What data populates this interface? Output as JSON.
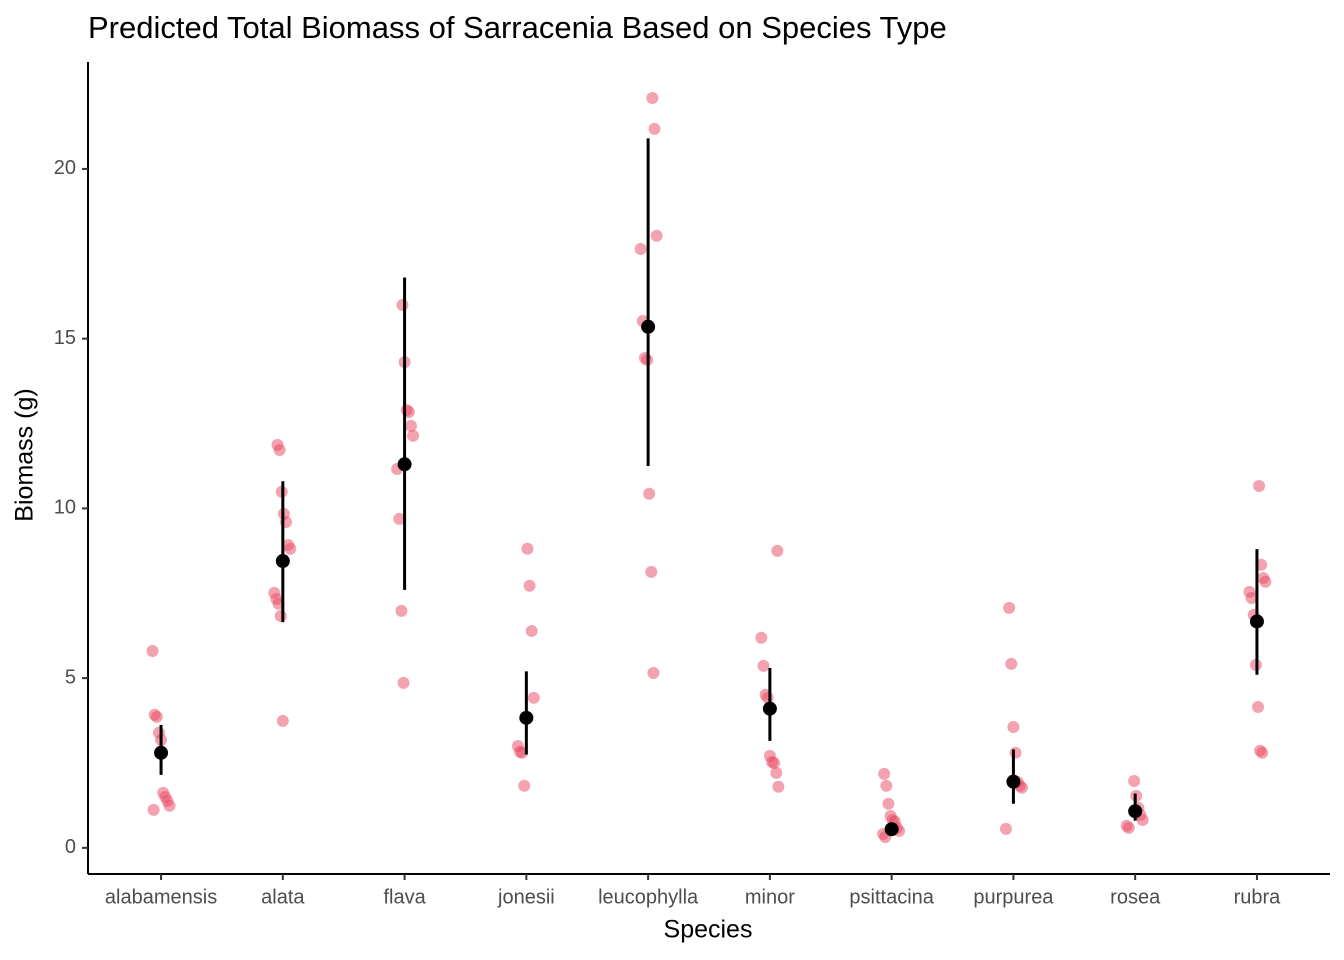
{
  "chart_data": {
    "type": "jitter-errorbar",
    "title": "Predicted Total Biomass of Sarracenia Based on Species Type",
    "x_label": "Species",
    "y_label": "Biomass (g)",
    "categories": [
      "alabamensis",
      "alata",
      "flava",
      "jonesii",
      "leucophylla",
      "minor",
      "psittacina",
      "purpurea",
      "rosea",
      "rubra"
    ],
    "points": [
      [
        5.8,
        3.92,
        3.86,
        3.39,
        3.18,
        1.62,
        1.5,
        1.38,
        1.24,
        1.12
      ],
      [
        11.87,
        11.72,
        10.49,
        9.84,
        9.6,
        8.92,
        8.81,
        7.51,
        7.33,
        7.19,
        6.83,
        3.74
      ],
      [
        15.99,
        14.31,
        12.9,
        12.84,
        12.43,
        12.14,
        11.16,
        9.69,
        6.98,
        4.86
      ],
      [
        8.81,
        7.72,
        6.39,
        4.42,
        3.0,
        2.83,
        2.8,
        1.83
      ],
      [
        22.09,
        21.18,
        18.03,
        17.64,
        15.52,
        14.43,
        14.37,
        10.43,
        8.13,
        5.15
      ],
      [
        8.75,
        6.19,
        5.36,
        4.51,
        4.42,
        2.71,
        2.53,
        2.5,
        2.21,
        1.8
      ],
      [
        2.18,
        1.83,
        1.3,
        0.94,
        0.82,
        0.77,
        0.59,
        0.5,
        0.41,
        0.32
      ],
      [
        7.07,
        5.42,
        3.56,
        2.8,
        1.94,
        1.83,
        1.77,
        0.56
      ],
      [
        1.97,
        1.53,
        1.18,
        0.97,
        0.82,
        0.65,
        0.59
      ],
      [
        10.66,
        8.34,
        7.95,
        7.84,
        7.54,
        7.36,
        6.86,
        5.39,
        4.15,
        2.86,
        2.8
      ]
    ],
    "point_color": "#e8475f",
    "means": [
      2.8,
      8.45,
      11.3,
      3.83,
      15.35,
      4.1,
      0.55,
      1.95,
      1.08,
      6.67
    ],
    "lower": [
      2.15,
      6.65,
      7.6,
      2.75,
      11.25,
      3.15,
      0.4,
      1.3,
      0.8,
      5.1
    ],
    "upper": [
      3.62,
      10.8,
      16.8,
      5.2,
      20.9,
      5.3,
      0.75,
      2.9,
      1.6,
      8.8
    ],
    "mean_color": "#000000",
    "ylim": [
      -0.77,
      23.15
    ],
    "yticks": [
      0,
      5,
      10,
      15,
      20
    ],
    "grid": false
  }
}
